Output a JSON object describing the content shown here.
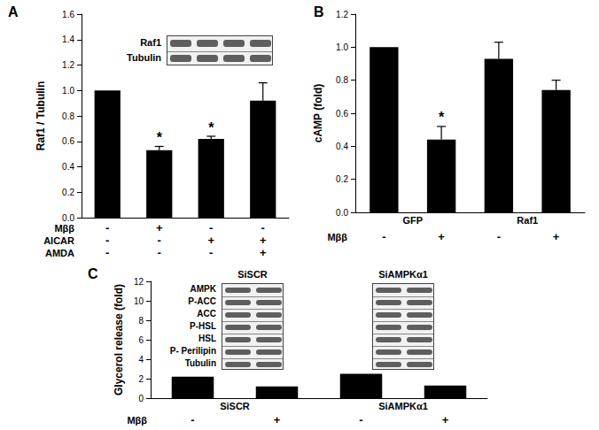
{
  "chart_data": [
    {
      "type": "bar",
      "title": "A",
      "y_label": "Raf1 / Tubulin",
      "categories": [
        null,
        null,
        null,
        null
      ],
      "values": [
        1.0,
        0.53,
        0.62,
        0.92
      ],
      "errors": [
        0,
        0.03,
        0.02,
        0.14
      ],
      "bar_annotations": [
        null,
        "*",
        "*",
        null
      ],
      "treatments": [
        {
          "label": "Mββ",
          "values": [
            "-",
            "+",
            "-",
            "-"
          ]
        },
        {
          "label": "AICAR",
          "values": [
            "-",
            "-",
            "+",
            "+"
          ]
        },
        {
          "label": "AMDA",
          "values": [
            "-",
            "-",
            "-",
            "+"
          ]
        }
      ],
      "blot": {
        "rows": [
          "Raf1",
          "Tubulin"
        ]
      },
      "color": "#000000",
      "ylim": [
        0,
        1.6
      ],
      "yticks": [
        {
          "value": 0,
          "label": "0.0"
        },
        0.2,
        0.4,
        0.6,
        0.8,
        {
          "value": 1,
          "label": "1.0"
        },
        1.2,
        1.4,
        1.6
      ],
      "grid": false,
      "tick_labels": "y"
    },
    {
      "type": "bar",
      "title": "B",
      "y_label": "cAMP (fold)",
      "categories": [
        null,
        null,
        null,
        null
      ],
      "groups": [
        "GFP",
        "GFP",
        "Raf1",
        "Raf1"
      ],
      "values": [
        1.0,
        0.44,
        0.93,
        0.74
      ],
      "errors": [
        0,
        0.08,
        0.1,
        0.06
      ],
      "bar_annotations": [
        null,
        "*",
        null,
        null
      ],
      "treatments": [
        {
          "label": "Mββ",
          "values": [
            "-",
            "+",
            "-",
            "+"
          ]
        }
      ],
      "color": "#000000",
      "ylim": [
        0,
        1.2
      ],
      "yticks": [
        {
          "value": 0,
          "label": "0.0"
        },
        0.2,
        0.4,
        0.6,
        0.8,
        {
          "value": 1,
          "label": "1.0"
        },
        1.2
      ],
      "grid": false,
      "tick_labels": "y"
    },
    {
      "type": "bar",
      "title": "C",
      "y_label": "Glycerol release (fold)",
      "categories": [
        null,
        null,
        null,
        null
      ],
      "groups": [
        "SiSCR",
        "SiSCR",
        "SiAMPKα1",
        "SiAMPKα1"
      ],
      "values": [
        2.2,
        1.2,
        2.5,
        1.3
      ],
      "treatments": [
        {
          "label": "Mββ",
          "values": [
            "-",
            "+",
            "-",
            "+"
          ]
        }
      ],
      "blot": {
        "rows": [
          "AMPK",
          "P-ACC",
          "ACC",
          "P-HSL",
          "HSL",
          "P- Perilipin",
          "Tubulin"
        ],
        "groups": [
          "SiSCR",
          "SiAMPKα1"
        ]
      },
      "color": "#000000",
      "ylim": [
        0,
        12
      ],
      "yticks": [
        0,
        2,
        4,
        6,
        8,
        10,
        12
      ],
      "grid": false,
      "tick_labels": "y"
    }
  ]
}
